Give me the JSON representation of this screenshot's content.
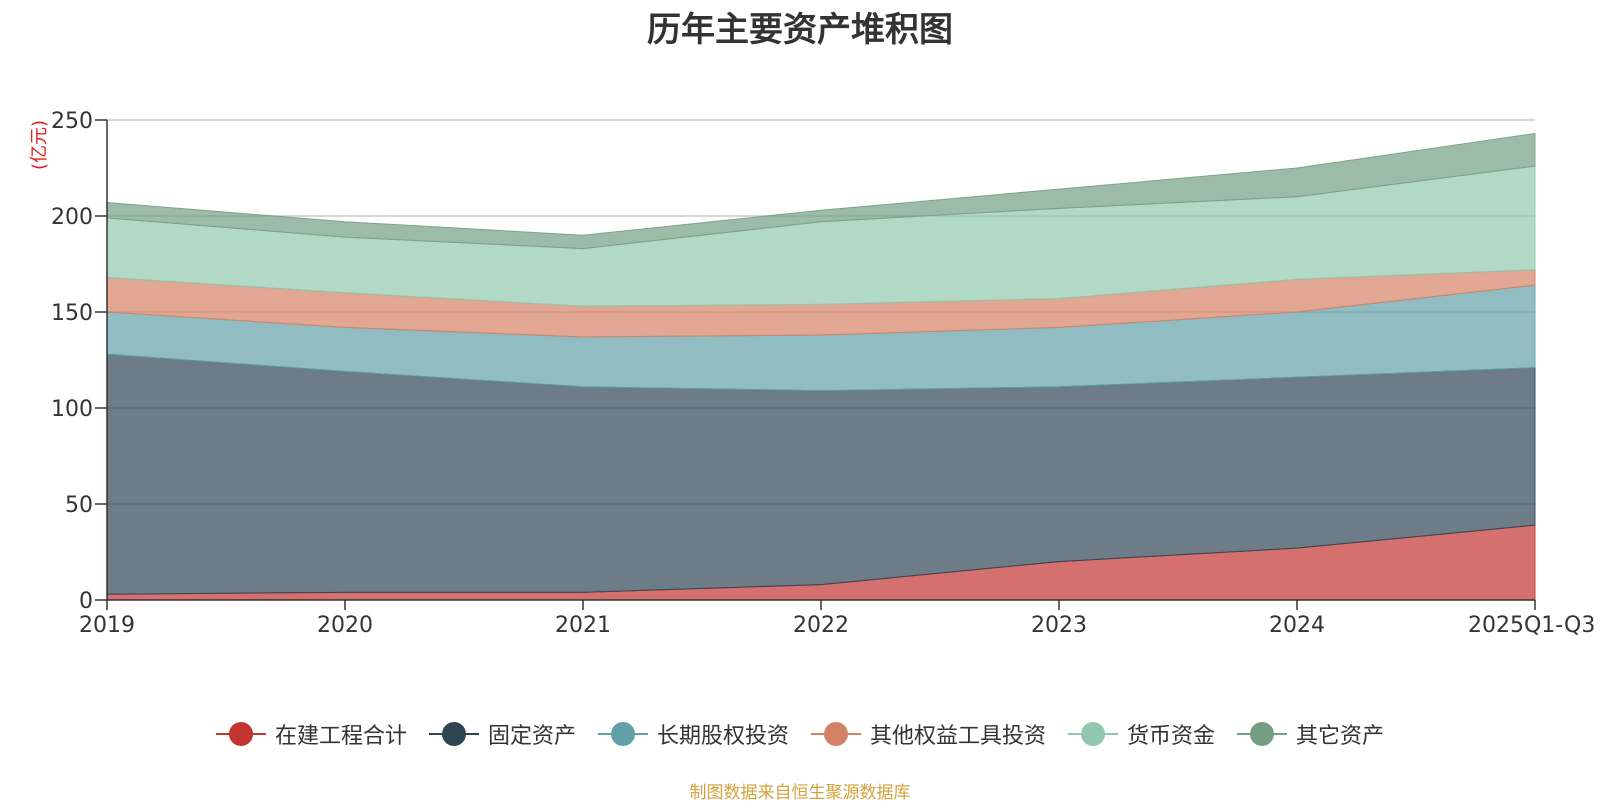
{
  "chart_data": {
    "type": "area",
    "stacked": true,
    "title": "历年主要资产堆积图",
    "ylabel": "(亿元)",
    "xlabel": "",
    "ylim": [
      0,
      250
    ],
    "yticks": [
      0,
      50,
      100,
      150,
      200,
      250
    ],
    "categories": [
      "2019",
      "2020",
      "2021",
      "2022",
      "2023",
      "2024",
      "2025Q1-Q3"
    ],
    "grid": true,
    "legend_position": "bottom-center",
    "series": [
      {
        "name": "在建工程合计",
        "color": "#c23531",
        "values": [
          3,
          4,
          4,
          8,
          20,
          27,
          39
        ]
      },
      {
        "name": "固定资产",
        "color": "#2f4554",
        "values": [
          125,
          115,
          107,
          101,
          91,
          89,
          82
        ]
      },
      {
        "name": "长期股权投资",
        "color": "#61a0a8",
        "values": [
          22,
          23,
          26,
          29,
          31,
          34,
          43
        ]
      },
      {
        "name": "其他权益工具投资",
        "color": "#d48265",
        "values": [
          18,
          18,
          16,
          16,
          15,
          17,
          8
        ]
      },
      {
        "name": "货币资金",
        "color": "#91c7ae",
        "values": [
          31,
          29,
          30,
          43,
          47,
          43,
          54
        ]
      },
      {
        "name": "其它资产",
        "color": "#749f83",
        "values": [
          8,
          8,
          7,
          6,
          10,
          15,
          17
        ]
      }
    ]
  },
  "source_note": "制图数据来自恒生聚源数据库"
}
